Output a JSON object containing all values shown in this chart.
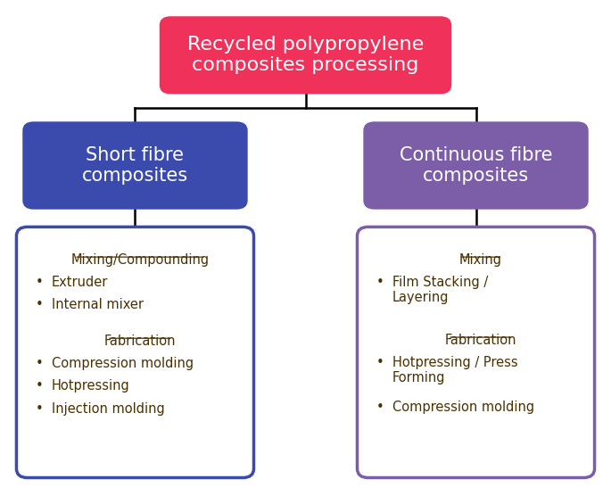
{
  "title": "Recycled polypropylene\ncomposites processing",
  "title_bg": "#f0315a",
  "title_text_color": "#ffffff",
  "left_header": "Short fibre\ncomposites",
  "left_header_bg": "#3a4aad",
  "right_header": "Continuous fibre\ncomposites",
  "right_header_bg": "#7b5ea7",
  "header_text_color": "#ffffff",
  "left_box_border": "#3a4aad",
  "right_box_border": "#7b5ea7",
  "left_content_heading1": "Mixing/Compounding",
  "left_content_items1": [
    "Extruder",
    "Internal mixer"
  ],
  "left_content_heading2": "Fabrication",
  "left_content_items2": [
    "Compression molding",
    "Hotpressing",
    "Injection molding"
  ],
  "right_content_heading1": "Mixing",
  "right_content_items1": [
    "Film Stacking /\nLayering"
  ],
  "right_content_heading2": "Fabrication",
  "right_content_items2": [
    "Hotpressing / Press\nForming",
    "Compression molding"
  ],
  "content_text_color": "#4a3000",
  "line_color": "#000000",
  "bg_color": "#ffffff",
  "figsize": [
    6.85,
    5.65
  ],
  "dpi": 100
}
